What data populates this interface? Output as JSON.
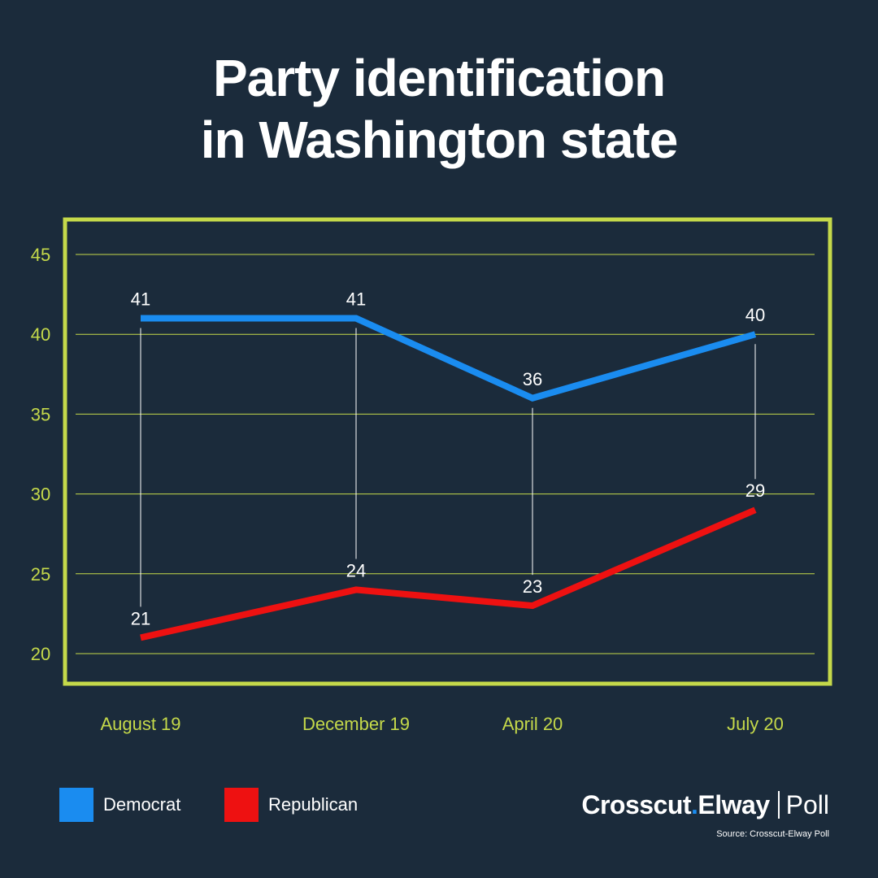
{
  "title_lines": [
    "Party identification",
    "in Washington state"
  ],
  "colors": {
    "background": "#1b2b3b",
    "frame": "#c5d94a",
    "axis_text": "#c5d94a",
    "grid": "#c5d94a",
    "democrat": "#1a8cf0",
    "republican": "#ee1111",
    "label": "#ffffff"
  },
  "chart_data": {
    "type": "line",
    "categories": [
      "August 19",
      "December 19",
      "April 20",
      "July 20"
    ],
    "series": [
      {
        "name": "Democrat",
        "values": [
          41,
          41,
          36,
          40
        ],
        "color_key": "democrat"
      },
      {
        "name": "Republican",
        "values": [
          21,
          24,
          23,
          29
        ],
        "color_key": "republican"
      }
    ],
    "ylim": [
      20,
      45
    ],
    "yticks": [
      20,
      25,
      30,
      35,
      40,
      45
    ],
    "grid": true,
    "legend_position": "bottom-left"
  },
  "legend": [
    {
      "label": "Democrat",
      "color_key": "democrat"
    },
    {
      "label": "Republican",
      "color_key": "republican"
    }
  ],
  "branding": {
    "name_part1": "Crosscut",
    "dot": ".",
    "name_part2": "Elway",
    "poll": "Poll",
    "source": "Source: Crosscut-Elway Poll"
  }
}
